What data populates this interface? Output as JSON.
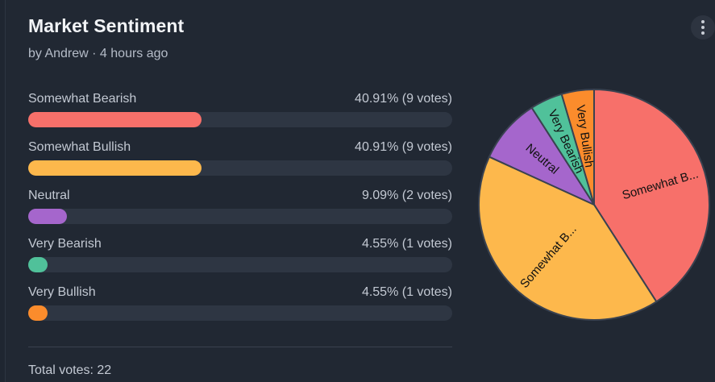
{
  "poll": {
    "title": "Market Sentiment",
    "meta": "by Andrew · 4 hours ago",
    "total_label": "Total votes: 22"
  },
  "options": [
    {
      "label": "Somewhat Bearish",
      "value_label": "40.91% (9 votes)",
      "percent": 40.91,
      "votes": 9,
      "color": "#f7706a",
      "pie_label": "Somewhat B..."
    },
    {
      "label": "Somewhat Bullish",
      "value_label": "40.91% (9 votes)",
      "percent": 40.91,
      "votes": 9,
      "color": "#fdb84c",
      "pie_label": "Somewhat B..."
    },
    {
      "label": "Neutral",
      "value_label": "9.09% (2 votes)",
      "percent": 9.09,
      "votes": 2,
      "color": "#a566cc",
      "pie_label": "Neutral"
    },
    {
      "label": "Very Bearish",
      "value_label": "4.55% (1 votes)",
      "percent": 4.55,
      "votes": 1,
      "color": "#50c19a",
      "pie_label": "Very Bearish"
    },
    {
      "label": "Very Bullish",
      "value_label": "4.55% (1 votes)",
      "percent": 4.55,
      "votes": 1,
      "color": "#fb8c2c",
      "pie_label": "Very Bullish"
    }
  ],
  "chart_data": {
    "type": "pie",
    "categories": [
      "Somewhat Bearish",
      "Somewhat Bullish",
      "Neutral",
      "Very Bearish",
      "Very Bullish"
    ],
    "values": [
      9,
      9,
      2,
      1,
      1
    ],
    "slice_labels": [
      "Somewhat B...",
      "Somewhat B...",
      "Neutral",
      "Very Bearish",
      "Very Bullish"
    ],
    "colors": [
      "#f7706a",
      "#fdb84c",
      "#a566cc",
      "#50c19a",
      "#fb8c2c"
    ],
    "direction": "clockwise-from-top"
  },
  "icons": {
    "menu": "kebab-menu-icon"
  }
}
